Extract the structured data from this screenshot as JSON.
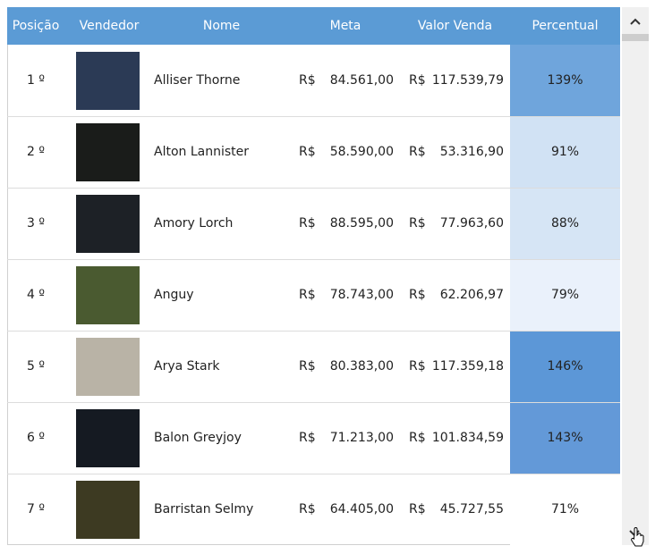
{
  "table": {
    "header": [
      "Posição",
      "Vendedor",
      "Nome",
      "Meta",
      "Valor Venda",
      "Percentual"
    ],
    "currency": "R$",
    "rows": [
      {
        "position": "1 º",
        "name": "Alliser Thorne",
        "meta": "84.561,00",
        "venda": "117.539,79",
        "percent": "139%",
        "color": "#6fa5dc"
      },
      {
        "position": "2 º",
        "name": "Alton Lannister",
        "meta": "58.590,00",
        "venda": "53.316,90",
        "percent": "91%",
        "color": "#d1e2f4"
      },
      {
        "position": "3 º",
        "name": "Amory Lorch",
        "meta": "88.595,00",
        "venda": "77.963,60",
        "percent": "88%",
        "color": "#d6e5f5"
      },
      {
        "position": "4 º",
        "name": "Anguy",
        "meta": "78.743,00",
        "venda": "62.206,97",
        "percent": "79%",
        "color": "#eaf1fb"
      },
      {
        "position": "5 º",
        "name": "Arya Stark",
        "meta": "80.383,00",
        "venda": "117.359,18",
        "percent": "146%",
        "color": "#5c97d7"
      },
      {
        "position": "6 º",
        "name": "Balon Greyjoy",
        "meta": "71.213,00",
        "venda": "101.834,59",
        "percent": "143%",
        "color": "#6399d8"
      },
      {
        "position": "7 º",
        "name": "Barristan Selmy",
        "meta": "64.405,00",
        "venda": "45.727,55",
        "percent": "71%",
        "color": "#ffffff"
      }
    ]
  }
}
